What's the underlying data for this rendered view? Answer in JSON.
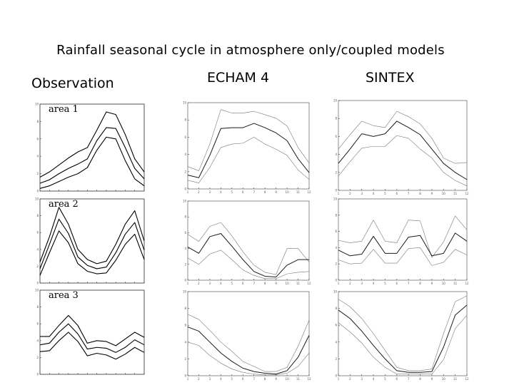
{
  "title": "Rainfall seasonal cycle in atmosphere only/coupled models",
  "columns": {
    "observation": "Observation",
    "echam": "ECHAM 4",
    "sintex": "SINTEX"
  },
  "colors": {
    "obs_line": "#000000",
    "model_mean": "#1a1a1a",
    "model_bound": "#777777",
    "frame": "#444444"
  },
  "chart_data": [
    {
      "type": "line",
      "column": "Observation",
      "area_label": "area 1",
      "x": [
        1,
        2,
        3,
        4,
        5,
        6,
        7,
        8,
        9,
        10,
        11,
        12
      ],
      "ylim": [
        0,
        10
      ],
      "series": [
        {
          "values": [
            1.6,
            2.2,
            3.0,
            3.8,
            4.5,
            5.0,
            7.0,
            9.1,
            8.8,
            6.5,
            3.7,
            2.2
          ]
        },
        {
          "values": [
            0.9,
            1.3,
            2.0,
            2.6,
            3.1,
            3.7,
            5.8,
            7.3,
            7.2,
            5.0,
            2.6,
            1.4
          ]
        },
        {
          "values": [
            0.3,
            0.6,
            1.1,
            1.6,
            2.0,
            2.7,
            4.7,
            6.2,
            6.0,
            3.5,
            1.4,
            0.6
          ]
        }
      ]
    },
    {
      "type": "line",
      "column": "Observation",
      "area_label": "area 2",
      "x": [
        1,
        2,
        3,
        4,
        5,
        6,
        7,
        8,
        9,
        10,
        11,
        12
      ],
      "ylim": [
        0,
        10
      ],
      "series": [
        {
          "values": [
            2.5,
            5.5,
            9.0,
            7.0,
            4.0,
            2.8,
            2.3,
            2.6,
            4.6,
            7.0,
            8.6,
            5.0
          ]
        },
        {
          "values": [
            1.7,
            4.6,
            7.6,
            5.9,
            3.1,
            2.1,
            1.7,
            1.9,
            3.6,
            5.8,
            7.2,
            3.9
          ]
        },
        {
          "values": [
            0.9,
            3.6,
            6.2,
            4.8,
            2.3,
            1.4,
            1.1,
            1.2,
            2.7,
            4.6,
            5.8,
            2.8
          ]
        }
      ]
    },
    {
      "type": "line",
      "column": "Observation",
      "area_label": "area 3",
      "x": [
        1,
        2,
        3,
        4,
        5,
        6,
        7,
        8,
        9,
        10,
        11,
        12
      ],
      "ylim": [
        0,
        10
      ],
      "series": [
        {
          "values": [
            4.5,
            4.5,
            5.8,
            7.0,
            5.8,
            3.7,
            4.0,
            3.9,
            3.4,
            4.2,
            5.0,
            4.4
          ]
        },
        {
          "values": [
            3.5,
            3.7,
            5.0,
            6.0,
            4.8,
            3.0,
            3.2,
            3.1,
            2.6,
            3.2,
            4.1,
            3.5
          ]
        },
        {
          "values": [
            2.7,
            2.8,
            4.0,
            5.0,
            3.9,
            2.2,
            2.5,
            2.3,
            1.8,
            2.4,
            3.2,
            2.6
          ]
        }
      ]
    },
    {
      "type": "line",
      "column": "ECHAM 4",
      "x": [
        1,
        2,
        3,
        4,
        5,
        6,
        7,
        8,
        9,
        10,
        11,
        12
      ],
      "ylim": [
        0,
        10
      ],
      "series": [
        {
          "values": [
            2.6,
            2.1,
            5.2,
            9.2,
            8.8,
            8.8,
            9.0,
            8.6,
            8.2,
            7.3,
            4.8,
            3.0
          ]
        },
        {
          "values": [
            1.6,
            1.3,
            3.9,
            7.0,
            7.1,
            7.1,
            7.6,
            7.1,
            6.5,
            5.6,
            3.5,
            1.9
          ]
        },
        {
          "values": [
            1.0,
            0.7,
            2.5,
            4.8,
            5.2,
            5.3,
            6.0,
            5.2,
            4.6,
            3.9,
            2.2,
            1.1
          ]
        }
      ]
    },
    {
      "type": "line",
      "column": "ECHAM 4",
      "x": [
        1,
        2,
        3,
        4,
        5,
        6,
        7,
        8,
        9,
        10,
        11,
        12
      ],
      "ylim": [
        0,
        10
      ],
      "series": [
        {
          "values": [
            5.8,
            4.9,
            6.8,
            7.3,
            5.6,
            3.6,
            1.9,
            1.0,
            0.7,
            4.0,
            4.0,
            2.3
          ]
        },
        {
          "values": [
            4.2,
            3.4,
            5.5,
            5.9,
            4.3,
            2.6,
            1.1,
            0.5,
            0.4,
            1.9,
            2.6,
            2.6
          ]
        },
        {
          "values": [
            2.8,
            2.0,
            3.3,
            3.8,
            2.6,
            1.3,
            0.6,
            0.2,
            0.2,
            0.8,
            1.0,
            1.1
          ]
        }
      ]
    },
    {
      "type": "line",
      "column": "ECHAM 4",
      "x": [
        1,
        2,
        3,
        4,
        5,
        6,
        7,
        8,
        9,
        10,
        11,
        12
      ],
      "ylim": [
        0,
        10
      ],
      "series": [
        {
          "values": [
            7.3,
            6.7,
            5.4,
            4.0,
            2.9,
            1.7,
            1.1,
            0.5,
            0.5,
            1.0,
            3.5,
            6.6
          ]
        },
        {
          "values": [
            5.8,
            5.3,
            4.0,
            2.7,
            1.7,
            0.9,
            0.5,
            0.3,
            0.2,
            0.6,
            2.2,
            4.8
          ]
        },
        {
          "values": [
            4.0,
            3.6,
            2.4,
            1.5,
            0.8,
            0.4,
            0.2,
            0.1,
            0.1,
            0.3,
            1.1,
            2.7
          ]
        }
      ]
    },
    {
      "type": "line",
      "column": "SINTEX",
      "x": [
        1,
        2,
        3,
        4,
        5,
        6,
        7,
        8,
        9,
        10,
        11,
        12
      ],
      "ylim": [
        0,
        10
      ],
      "series": [
        {
          "values": [
            4.6,
            6.2,
            7.7,
            7.2,
            7.0,
            8.8,
            8.2,
            7.4,
            5.8,
            3.6,
            3.0,
            3.1
          ]
        },
        {
          "values": [
            3.0,
            4.6,
            6.3,
            6.0,
            6.3,
            7.7,
            7.0,
            6.2,
            4.6,
            3.0,
            2.0,
            1.2
          ]
        },
        {
          "values": [
            1.6,
            3.2,
            4.7,
            4.9,
            4.9,
            6.1,
            5.8,
            4.6,
            3.6,
            2.0,
            1.1,
            0.5
          ]
        }
      ]
    },
    {
      "type": "line",
      "column": "SINTEX",
      "x": [
        1,
        2,
        3,
        4,
        5,
        6,
        7,
        8,
        9,
        10,
        11,
        12
      ],
      "ylim": [
        0,
        10
      ],
      "series": [
        {
          "values": [
            4.9,
            4.6,
            4.8,
            7.4,
            4.8,
            4.6,
            7.4,
            7.3,
            2.8,
            4.7,
            7.9,
            6.2
          ]
        },
        {
          "values": [
            3.7,
            3.0,
            3.2,
            5.4,
            3.3,
            3.3,
            5.3,
            5.5,
            3.0,
            3.3,
            5.8,
            4.8
          ]
        },
        {
          "values": [
            2.5,
            2.0,
            2.1,
            3.8,
            2.1,
            2.1,
            3.9,
            4.0,
            1.8,
            2.2,
            3.8,
            3.1
          ]
        }
      ]
    },
    {
      "type": "line",
      "column": "SINTEX",
      "x": [
        1,
        2,
        3,
        4,
        5,
        6,
        7,
        8,
        9,
        10,
        11,
        12
      ],
      "ylim": [
        0,
        10
      ],
      "series": [
        {
          "values": [
            9.1,
            8.2,
            6.8,
            5.0,
            3.0,
            1.0,
            0.6,
            0.6,
            0.8,
            5.0,
            8.8,
            9.5
          ]
        },
        {
          "values": [
            7.8,
            6.8,
            5.3,
            3.6,
            2.0,
            0.6,
            0.4,
            0.4,
            0.5,
            3.4,
            7.2,
            8.4
          ]
        },
        {
          "values": [
            6.3,
            5.2,
            3.9,
            2.2,
            1.0,
            0.2,
            0.2,
            0.2,
            0.2,
            1.9,
            5.6,
            7.2
          ]
        }
      ]
    }
  ]
}
